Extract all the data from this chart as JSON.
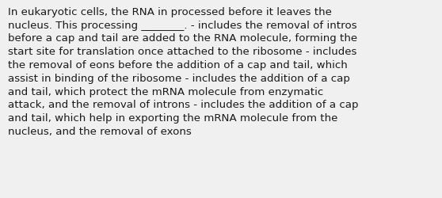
{
  "background_color": "#f0f0f0",
  "text_color": "#1a1a1a",
  "main_text": "In eukaryotic cells, the RNA in processed before it leaves the\nnucleus. This processing ________. - includes the removal of intros\nbefore a cap and tail are added to the RNA molecule, forming the\nstart site for translation once attached to the ribosome - includes\nthe removal of eons before the addition of a cap and tail, which\nassist in binding of the ribosome - includes the addition of a cap\nand tail, which protect the mRNA molecule from enzymatic\nattack, and the removal of introns - includes the addition of a cap\nand tail, which help in exporting the mRNA molecule from the\nnucleus, and the removal of exons",
  "font_size": 9.6,
  "figsize": [
    5.58,
    2.51
  ],
  "dpi": 100
}
